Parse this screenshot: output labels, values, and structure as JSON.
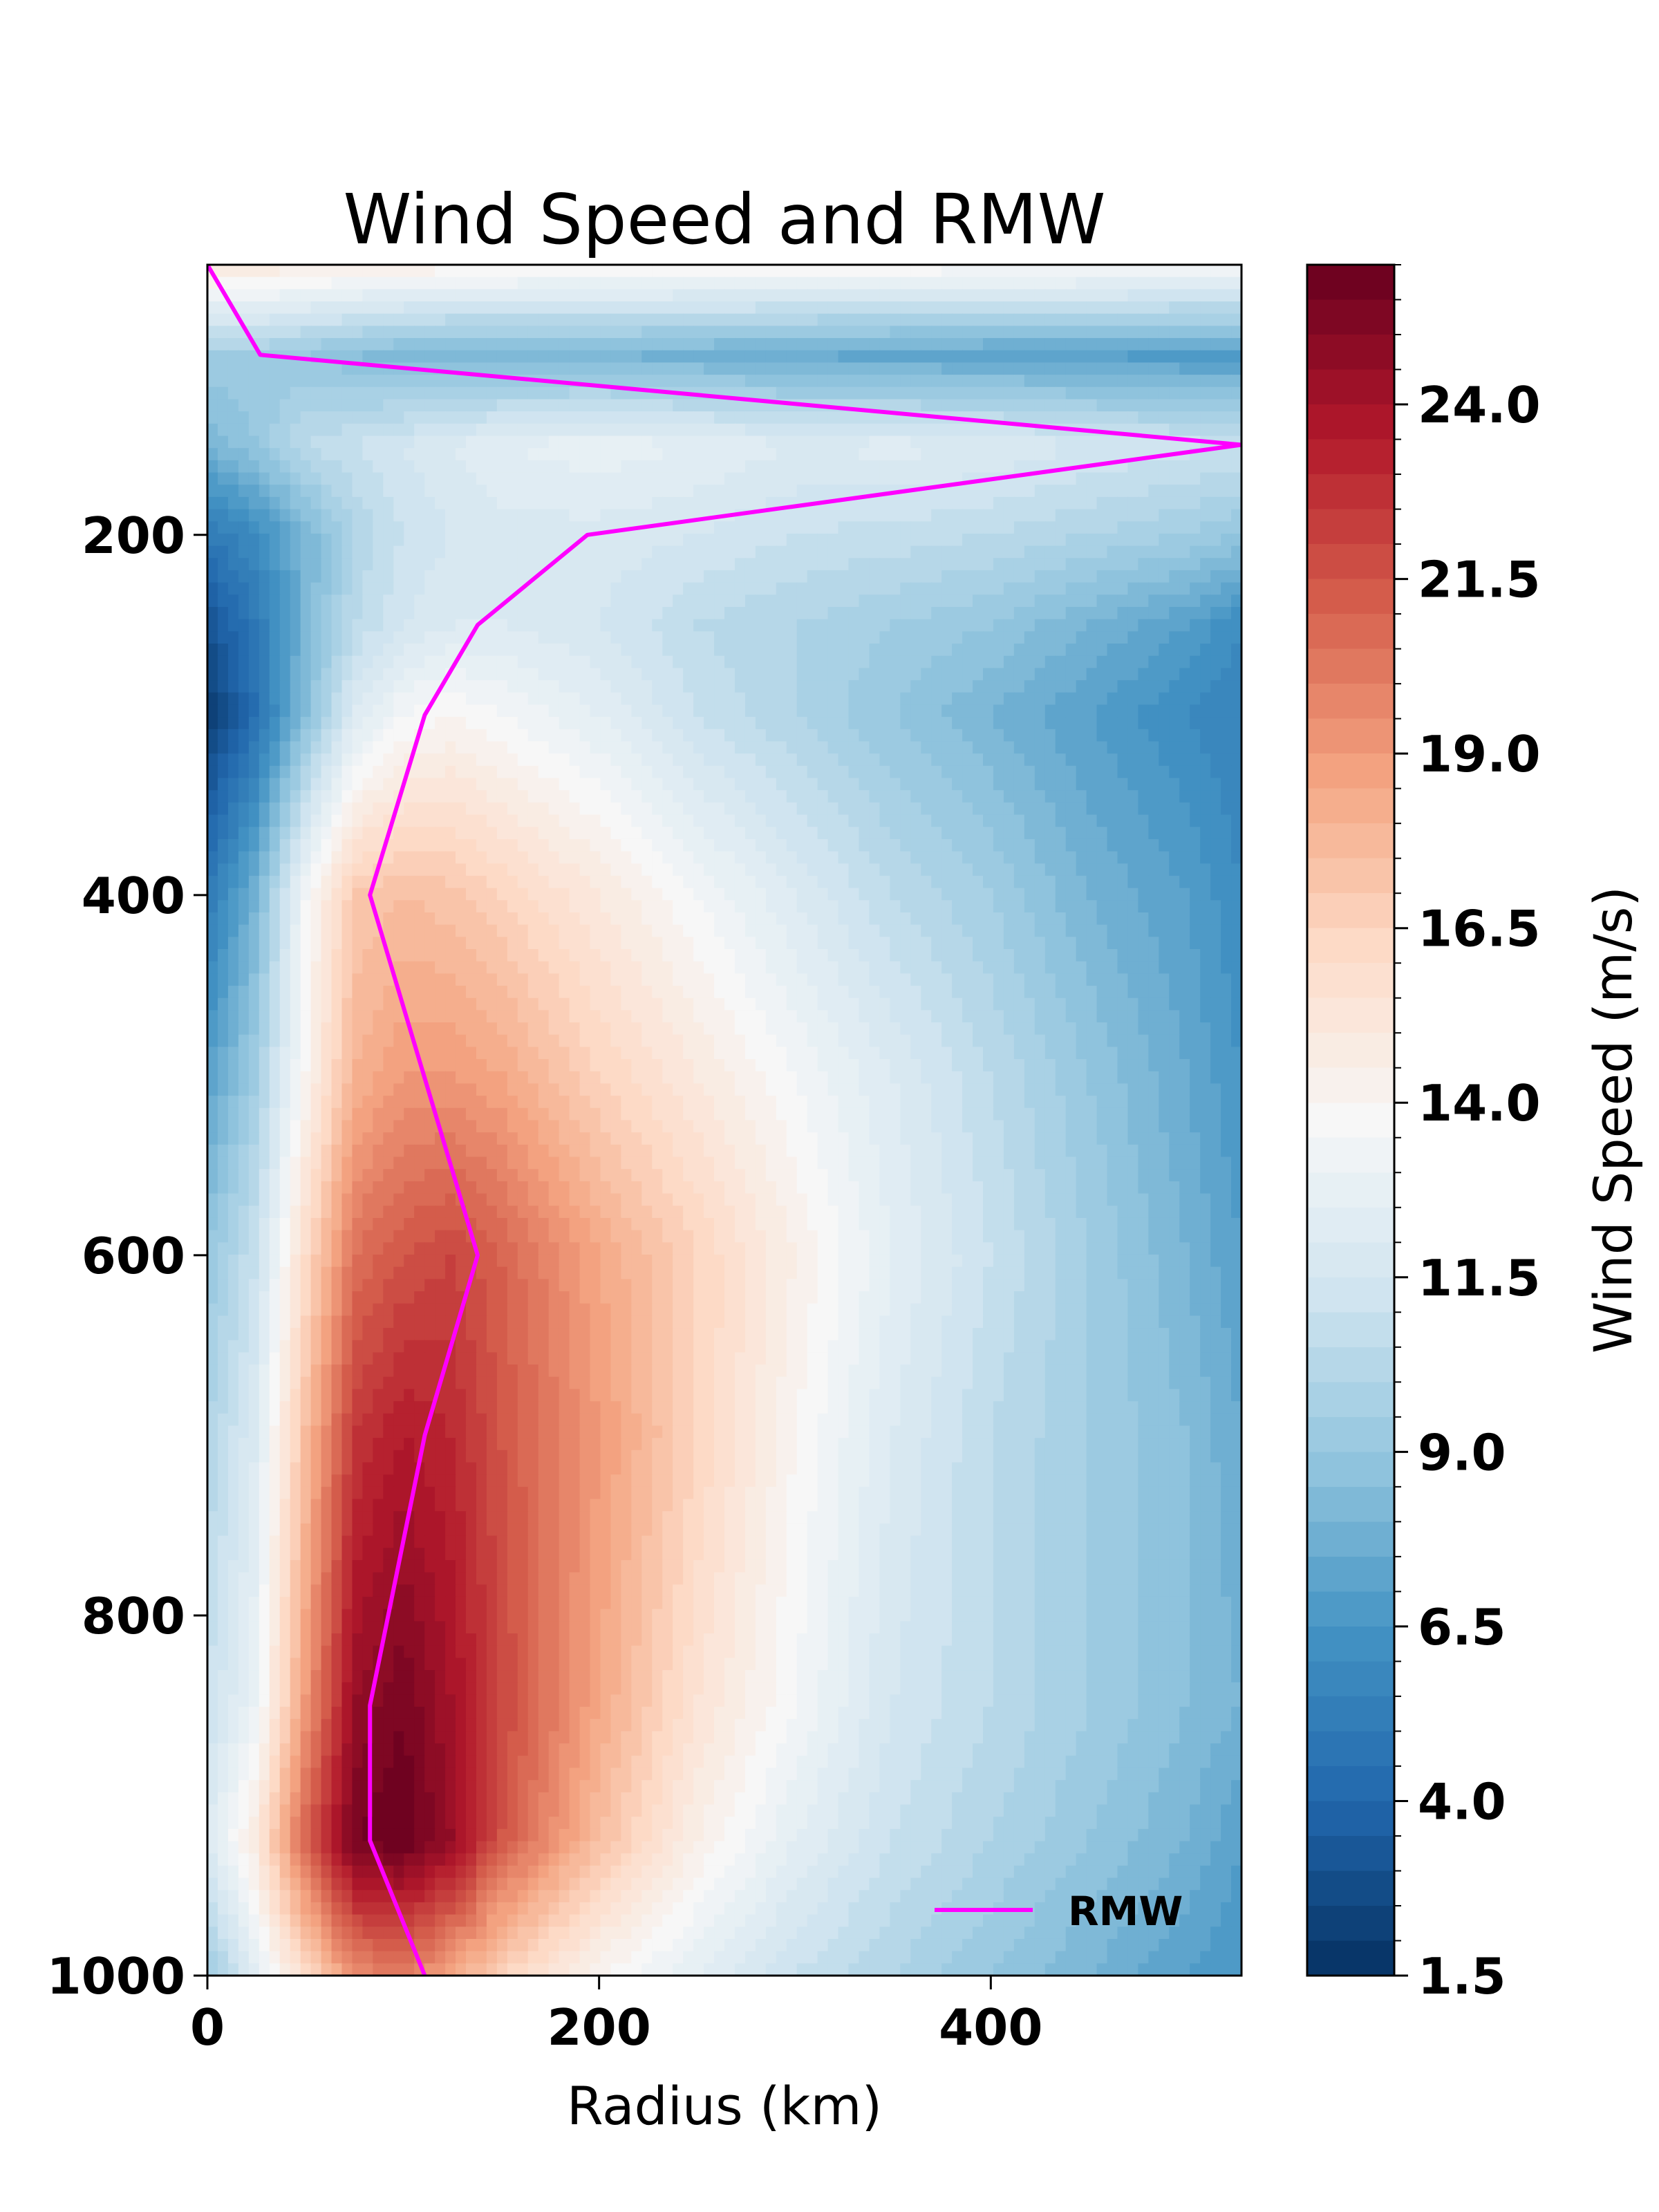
{
  "chart_data": {
    "type": "heatmap",
    "title": "Wind Speed and RMW",
    "xlabel": "Radius (km)",
    "ylabel": "",
    "xlim": [
      0,
      528
    ],
    "ylim": [
      1000,
      50
    ],
    "y_inverted": true,
    "x_ticks": [
      "0",
      "200",
      "400"
    ],
    "x_tick_values": [
      0,
      200,
      400
    ],
    "y_ticks": [
      "200",
      "400",
      "600",
      "800",
      "1000"
    ],
    "y_tick_values": [
      200,
      400,
      600,
      800,
      1000
    ],
    "colorbar": {
      "label": "Wind Speed (m/s)",
      "colormap": "RdBu_r",
      "min": 1.5,
      "max": 26.0,
      "tick_labels": [
        "1.5",
        "4.0",
        "6.5",
        "9.0",
        "11.5",
        "14.0",
        "16.5",
        "19.0",
        "21.5",
        "24.0"
      ],
      "tick_values": [
        1.5,
        4.0,
        6.5,
        9.0,
        11.5,
        14.0,
        16.5,
        19.0,
        21.5,
        24.0
      ]
    },
    "grid": {
      "levels": [
        50,
        100,
        150,
        200,
        250,
        300,
        400,
        500,
        600,
        700,
        850,
        925,
        1000
      ],
      "radii": [
        0,
        25,
        50,
        75,
        100,
        125,
        150,
        200,
        250,
        300,
        350,
        400,
        450,
        500,
        528
      ],
      "wind_speed": [
        [
          15.2,
          15.0,
          14.8,
          14.6,
          14.5,
          14.4,
          14.3,
          14.2,
          14.1,
          14.0,
          14.0,
          13.9,
          13.9,
          13.8,
          13.8
        ],
        [
          9.5,
          9.5,
          9.0,
          8.5,
          8.2,
          8.0,
          8.0,
          8.0,
          7.8,
          7.5,
          7.3,
          7.2,
          7.0,
          6.8,
          6.8
        ],
        [
          8.0,
          9.0,
          10.5,
          11.0,
          11.5,
          12.0,
          12.5,
          12.8,
          12.5,
          12.0,
          12.2,
          12.0,
          11.5,
          11.2,
          11.0
        ],
        [
          5.0,
          6.0,
          8.0,
          10.0,
          11.0,
          11.5,
          11.8,
          11.8,
          11.5,
          11.0,
          10.8,
          10.5,
          10.0,
          9.5,
          9.0
        ],
        [
          3.0,
          5.0,
          8.0,
          10.5,
          11.5,
          12.0,
          12.0,
          11.5,
          10.5,
          10.0,
          9.5,
          9.0,
          8.0,
          7.0,
          6.0
        ],
        [
          2.0,
          4.5,
          8.5,
          12.0,
          13.5,
          14.0,
          13.5,
          12.5,
          11.0,
          10.0,
          9.0,
          8.0,
          7.0,
          6.0,
          5.5
        ],
        [
          5.0,
          8.0,
          13.5,
          17.0,
          17.5,
          17.2,
          16.5,
          15.0,
          13.5,
          12.0,
          10.5,
          9.5,
          8.0,
          7.0,
          6.0
        ],
        [
          7.0,
          9.5,
          14.0,
          18.0,
          19.0,
          19.0,
          18.5,
          16.5,
          15.0,
          13.5,
          12.0,
          10.5,
          9.0,
          7.5,
          6.5
        ],
        [
          9.0,
          11.0,
          16.0,
          20.5,
          21.5,
          22.0,
          21.0,
          18.5,
          16.5,
          14.5,
          12.5,
          11.0,
          9.5,
          8.0,
          7.0
        ],
        [
          10.0,
          12.0,
          17.5,
          22.5,
          23.5,
          23.0,
          21.5,
          19.0,
          16.5,
          14.0,
          12.0,
          10.5,
          9.5,
          8.5,
          7.5
        ],
        [
          11.0,
          13.0,
          19.0,
          24.5,
          25.5,
          24.0,
          22.0,
          18.5,
          15.5,
          13.5,
          11.5,
          10.5,
          9.5,
          8.5,
          8.0
        ],
        [
          12.0,
          15.0,
          21.0,
          25.5,
          26.0,
          24.5,
          21.5,
          17.5,
          14.5,
          12.5,
          11.0,
          10.0,
          9.0,
          8.0,
          7.0
        ],
        [
          9.0,
          12.5,
          16.0,
          19.5,
          20.0,
          18.5,
          16.5,
          14.0,
          12.5,
          11.0,
          10.0,
          9.0,
          8.0,
          7.0,
          6.5
        ]
      ]
    },
    "series": [
      {
        "name": "RMW",
        "color": "#ff00ff",
        "points": [
          [
            0,
            50
          ],
          [
            27,
            100
          ],
          [
            528,
            150
          ],
          [
            194,
            200
          ],
          [
            138,
            250
          ],
          [
            111,
            300
          ],
          [
            83,
            400
          ],
          [
            138,
            600
          ],
          [
            111,
            700
          ],
          [
            83,
            850
          ],
          [
            83,
            925
          ],
          [
            111,
            1000
          ]
        ]
      }
    ],
    "legend_position": "lower-right"
  }
}
